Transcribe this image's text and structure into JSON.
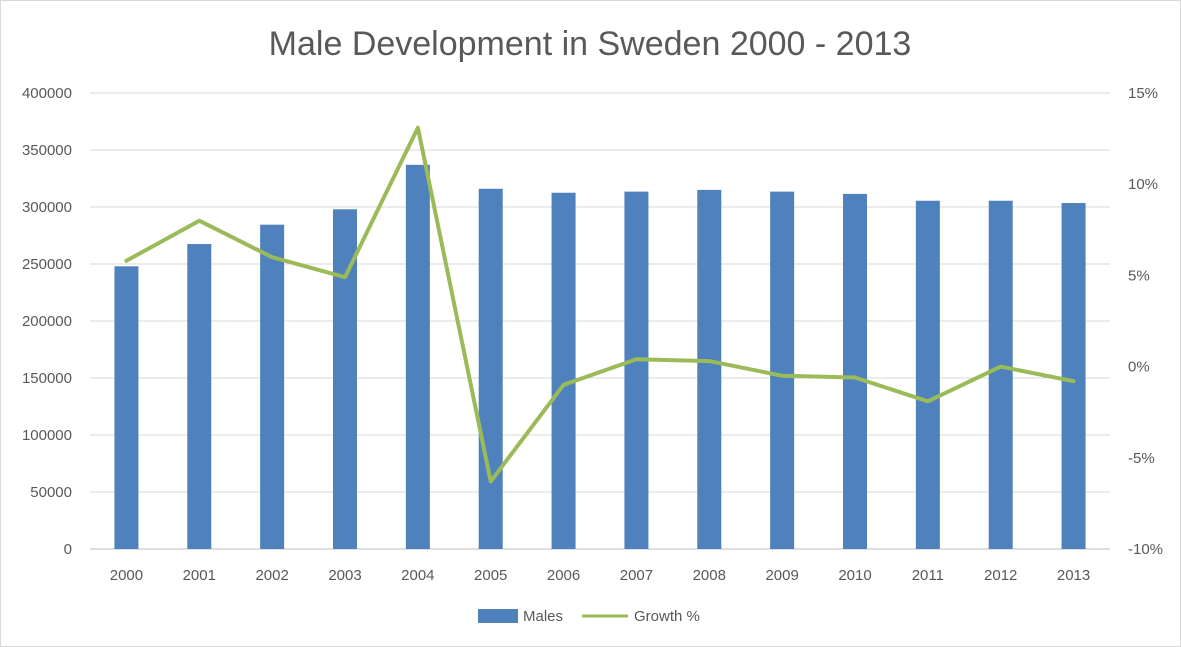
{
  "chart_data": {
    "type": "bar",
    "title": "Male Development in Sweden 2000 - 2013",
    "categories": [
      "2000",
      "2001",
      "2002",
      "2003",
      "2004",
      "2005",
      "2006",
      "2007",
      "2008",
      "2009",
      "2010",
      "2011",
      "2012",
      "2013"
    ],
    "series": [
      {
        "name": "Males",
        "type": "bar",
        "axis": "left",
        "color": "#4f81bd",
        "values": [
          248000,
          267500,
          284500,
          298000,
          337000,
          316000,
          312500,
          313500,
          315000,
          313500,
          311500,
          305500,
          305500,
          303500
        ]
      },
      {
        "name": "Growth %",
        "type": "line",
        "axis": "right",
        "color": "#9bbb59",
        "values": [
          5.8,
          8.0,
          6.0,
          4.9,
          13.1,
          -6.3,
          -1.0,
          0.4,
          0.3,
          -0.5,
          -0.6,
          -1.9,
          0.0,
          -0.8
        ]
      }
    ],
    "y_left": {
      "min": 0,
      "max": 400000,
      "ticks": [
        0,
        50000,
        100000,
        150000,
        200000,
        250000,
        300000,
        350000,
        400000
      ],
      "tick_labels": [
        "0",
        "50000",
        "100000",
        "150000",
        "200000",
        "250000",
        "300000",
        "350000",
        "400000"
      ]
    },
    "y_right": {
      "min": -10,
      "max": 15,
      "ticks": [
        -10,
        -5,
        0,
        5,
        10,
        15
      ],
      "tick_labels": [
        "-10%",
        "-5%",
        "0%",
        "5%",
        "10%",
        "15%"
      ]
    },
    "grid": true,
    "legend_position": "bottom"
  }
}
